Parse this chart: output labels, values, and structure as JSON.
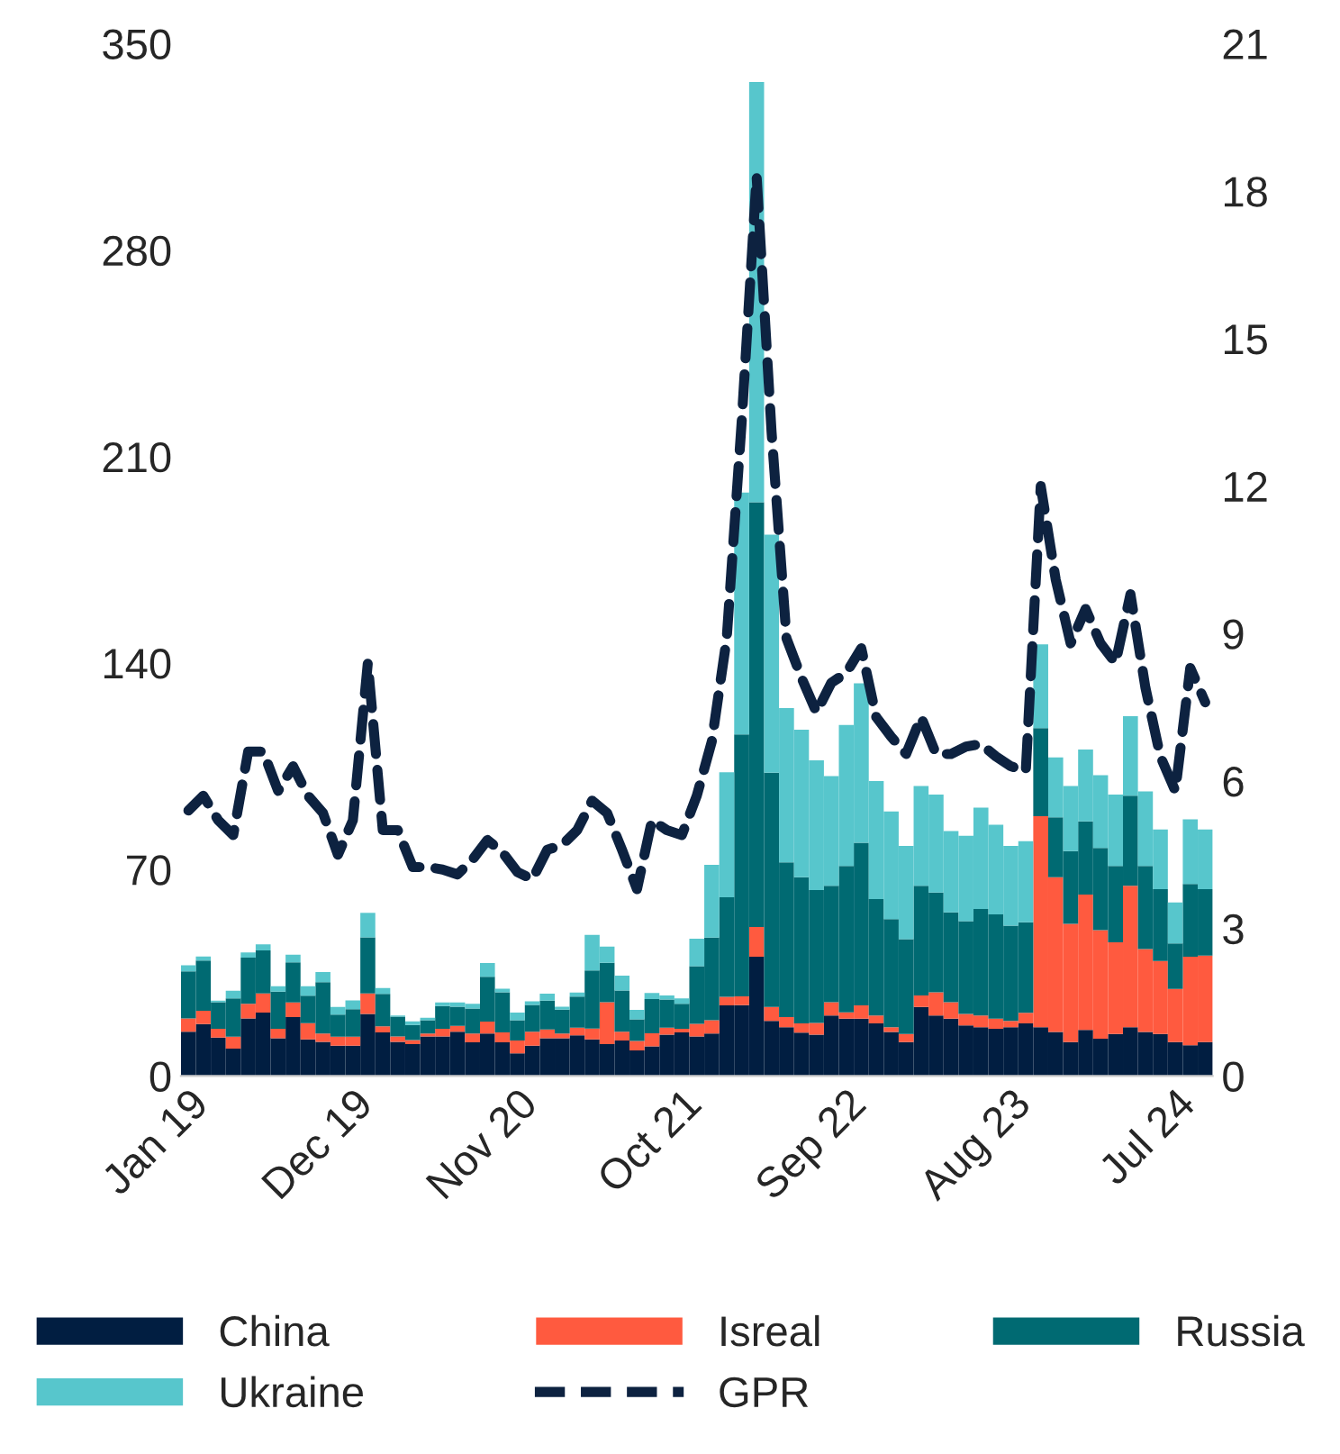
{
  "chart_data": {
    "type": "bar",
    "stacked": true,
    "legend": "bottom",
    "grid": false,
    "categories": [
      "Jan 19",
      null,
      null,
      null,
      null,
      null,
      null,
      null,
      null,
      null,
      null,
      "Dec 19",
      null,
      null,
      null,
      null,
      null,
      null,
      null,
      null,
      null,
      null,
      "Nov 20",
      null,
      null,
      null,
      null,
      null,
      null,
      null,
      null,
      null,
      null,
      "Oct 21",
      null,
      null,
      null,
      null,
      null,
      null,
      null,
      null,
      null,
      null,
      "Sep 22",
      null,
      null,
      null,
      null,
      null,
      null,
      null,
      null,
      null,
      null,
      "Aug 23",
      null,
      null,
      null,
      null,
      null,
      null,
      null,
      null,
      null,
      null,
      "Jul 24",
      null,
      null
    ],
    "ylim": [
      0,
      350
    ],
    "yticks": [
      0,
      70,
      140,
      210,
      280,
      350
    ],
    "y2lim": [
      0,
      21
    ],
    "y2ticks": [
      0,
      3,
      6,
      9,
      12,
      15,
      18,
      21
    ],
    "series": [
      {
        "name": "China",
        "color": "#011e41",
        "values": [
          15,
          17.6,
          13,
          9.3,
          19.5,
          21.5,
          12.8,
          20,
          12.4,
          11.6,
          10.3,
          10.3,
          21,
          14.8,
          11.6,
          10.8,
          13.4,
          13.4,
          15,
          11.4,
          14.4,
          11.4,
          7.7,
          10.3,
          12.8,
          12.8,
          13.8,
          12.4,
          10.8,
          12,
          8.7,
          10,
          14,
          14.8,
          13.4,
          14.4,
          23.9,
          24,
          40.4,
          18.7,
          16.5,
          14.7,
          14,
          20.5,
          19.4,
          19.4,
          17.8,
          14.9,
          11.5,
          23.4,
          20.5,
          19.4,
          17.1,
          16.5,
          16,
          16.5,
          17.8,
          16.5,
          14.9,
          11.5,
          15.6,
          12.6,
          14.2,
          16.5,
          14.9,
          14.2,
          11.5,
          10.4,
          11.5
        ]
      },
      {
        "name": "Isreal",
        "color": "#ff5a3f",
        "values": [
          4.5,
          4.5,
          3,
          4,
          5,
          6.5,
          3.2,
          4.9,
          5.5,
          2.8,
          3,
          3,
          7,
          2,
          1.8,
          1.4,
          1,
          2.6,
          2,
          3,
          4,
          3.4,
          4.3,
          4.7,
          3,
          1.6,
          2.6,
          3.7,
          14.2,
          3,
          3.2,
          4.5,
          2.4,
          1.2,
          4.3,
          4.5,
          2.9,
          3,
          10.1,
          4.7,
          3.5,
          3.1,
          4,
          4.5,
          2.2,
          4.5,
          2.7,
          1.6,
          2.7,
          3.9,
          7.9,
          5.6,
          3.9,
          4,
          3.4,
          2.2,
          3.6,
          71.6,
          52.5,
          40.1,
          45.9,
          36.8,
          31.1,
          48,
          28.1,
          24.8,
          18,
          30,
          29.3
        ]
      },
      {
        "name": "Russia",
        "color": "#006a72",
        "values": [
          16,
          17,
          9,
          13,
          15.6,
          14.6,
          12.6,
          13.6,
          9.3,
          17.4,
          7.5,
          9.3,
          19,
          11,
          6.7,
          5.1,
          4.5,
          7.7,
          6.5,
          8.5,
          15.2,
          13.6,
          6.9,
          9.1,
          9.7,
          8.1,
          10.5,
          19.7,
          13.4,
          14,
          7.3,
          11.6,
          9.5,
          8.5,
          19.5,
          28,
          33.8,
          88.8,
          144,
          79.4,
          52.4,
          49.6,
          45,
          39.5,
          49.6,
          55.2,
          39.5,
          36.7,
          32.2,
          37.2,
          33.8,
          30.5,
          31.5,
          36.1,
          35.4,
          32.3,
          30.7,
          29.8,
          20.3,
          24.6,
          24.8,
          27.9,
          25.9,
          30.5,
          28.2,
          24.3,
          15.4,
          24.7,
          22.5
        ]
      },
      {
        "name": "Ukraine",
        "color": "#57c6cc",
        "values": [
          2,
          1.4,
          0.5,
          2.6,
          1.8,
          2,
          1.8,
          2.6,
          3.2,
          3.4,
          2.6,
          3,
          8.3,
          2,
          0.4,
          1.2,
          0.8,
          1.2,
          1.4,
          1.6,
          4.7,
          1.2,
          2.6,
          1.2,
          2.4,
          1,
          1.4,
          12,
          5.5,
          5,
          3.2,
          2,
          1.4,
          1.8,
          9.3,
          24.7,
          42.4,
          82,
          142.5,
          80.7,
          52.3,
          50,
          44,
          37.2,
          47.8,
          54,
          40,
          36.5,
          31.6,
          33.8,
          33.2,
          27.5,
          28.9,
          34.4,
          30.4,
          27,
          27.5,
          28.4,
          20.3,
          22.1,
          24.4,
          24.7,
          24.2,
          27,
          25.3,
          20.3,
          13.9,
          21.9,
          20.3
        ]
      },
      {
        "name": "GPR",
        "type": "line",
        "axis": "y2",
        "line_style": "dashed",
        "color": "#0d2240",
        "values": [
          5.4,
          5.7,
          5.2,
          4.9,
          6.6,
          6.6,
          5.8,
          6.3,
          5.7,
          5.35,
          4.5,
          5.2,
          8.4,
          5.0,
          5.0,
          4.25,
          4.25,
          4.2,
          4.1,
          4.4,
          4.8,
          4.55,
          4.15,
          4.0,
          4.6,
          4.7,
          5.0,
          5.6,
          5.35,
          4.6,
          3.8,
          5.2,
          5.0,
          4.9,
          5.7,
          6.8,
          8.9,
          13.3,
          18.3,
          13.1,
          8.9,
          8.1,
          7.4,
          8.0,
          8.2,
          8.7,
          7.3,
          6.9,
          6.55,
          7.3,
          6.55,
          6.55,
          6.7,
          6.75,
          6.5,
          6.3,
          6.2,
          12.0,
          10.1,
          8.8,
          9.5,
          8.8,
          8.4,
          9.8,
          7.9,
          6.5,
          5.8,
          8.3,
          7.6
        ]
      }
    ]
  }
}
